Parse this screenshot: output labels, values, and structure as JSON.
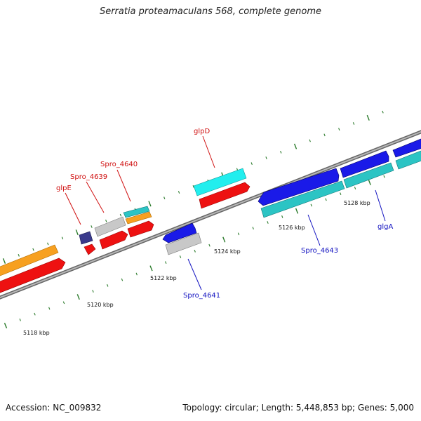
{
  "title": "Serratia proteamaculans 568, complete genome",
  "footer": {
    "accession": "Accession: NC_009832",
    "topology": "Topology: circular; Length: 5,448,853 bp; Genes: 5,000"
  },
  "colors": {
    "backbone": "#8a8a8a",
    "tick": "#2a7a2a",
    "label_red": "#d01010",
    "label_blue": "#1010c0",
    "orange": "#f7a020",
    "red": "#ee1111",
    "grey": "#c8c8c8",
    "cyan": "#22eeee",
    "teal": "#2cc4c4",
    "blue": "#1a1ae8",
    "navy": "#3a3a8c"
  },
  "scale_labels": [
    {
      "text": "5118 kbp",
      "pos_kbp": 5118
    },
    {
      "text": "5120 kbp",
      "pos_kbp": 5120
    },
    {
      "text": "5122 kbp",
      "pos_kbp": 5122
    },
    {
      "text": "5124 kbp",
      "pos_kbp": 5124
    },
    {
      "text": "5126 kbp",
      "pos_kbp": 5126
    },
    {
      "text": "5128 kbp",
      "pos_kbp": 5128
    }
  ],
  "gene_labels": [
    {
      "id": "glpE",
      "text": "glpE",
      "color": "label_red"
    },
    {
      "id": "spro4639",
      "text": "Spro_4639",
      "color": "label_red"
    },
    {
      "id": "spro4640",
      "text": "Spro_4640",
      "color": "label_red"
    },
    {
      "id": "glpD",
      "text": "glpD",
      "color": "label_red"
    },
    {
      "id": "spro4641",
      "text": "Spro_4641",
      "color": "label_blue"
    },
    {
      "id": "spro4643",
      "text": "Spro_4643",
      "color": "label_blue"
    },
    {
      "id": "glgA",
      "text": "glgA",
      "color": "label_blue"
    }
  ]
}
